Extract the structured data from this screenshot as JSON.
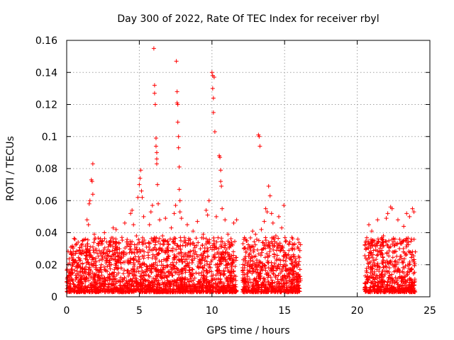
{
  "chart_data": {
    "type": "scatter",
    "title": "Day 300 of 2022, Rate Of TEC Index for receiver rbyl",
    "xlabel": "GPS time / hours",
    "ylabel": "ROTI / TECUs",
    "xlim": [
      0,
      25
    ],
    "ylim": [
      0,
      0.16
    ],
    "xticks": [
      0,
      5,
      10,
      15,
      20,
      25
    ],
    "xtick_labels": [
      "0",
      "5",
      "10",
      "15",
      "20",
      "25"
    ],
    "yticks": [
      0,
      0.02,
      0.04,
      0.06,
      0.08,
      0.1,
      0.12,
      0.14,
      0.16
    ],
    "ytick_labels": [
      "0",
      "0.02",
      "0.04",
      "0.06",
      "0.08",
      "0.1",
      "0.12",
      "0.14",
      "0.16"
    ],
    "grid": true,
    "marker": "+",
    "color": "#ff0000",
    "data_gaps_hours": [
      [
        16.1,
        20.5
      ]
    ],
    "coverage_segments_hours": [
      [
        0.0,
        11.7
      ],
      [
        12.1,
        16.1
      ],
      [
        20.5,
        24.0
      ]
    ],
    "series": [
      {
        "name": "rbyl",
        "points": [
          [
            0.05,
            0.012
          ],
          [
            0.2,
            0.021
          ],
          [
            0.4,
            0.015
          ],
          [
            0.6,
            0.027
          ],
          [
            0.8,
            0.009
          ],
          [
            1.0,
            0.031
          ],
          [
            1.1,
            0.018
          ],
          [
            1.3,
            0.036
          ],
          [
            1.4,
            0.048
          ],
          [
            1.5,
            0.045
          ],
          [
            1.55,
            0.058
          ],
          [
            1.6,
            0.06
          ],
          [
            1.7,
            0.073
          ],
          [
            1.75,
            0.072
          ],
          [
            1.8,
            0.083
          ],
          [
            1.8,
            0.064
          ],
          [
            1.9,
            0.039
          ],
          [
            2.0,
            0.024
          ],
          [
            2.2,
            0.033
          ],
          [
            2.4,
            0.028
          ],
          [
            2.6,
            0.04
          ],
          [
            2.8,
            0.019
          ],
          [
            3.0,
            0.032
          ],
          [
            3.2,
            0.043
          ],
          [
            3.4,
            0.042
          ],
          [
            3.6,
            0.026
          ],
          [
            3.8,
            0.037
          ],
          [
            4.0,
            0.046
          ],
          [
            4.2,
            0.033
          ],
          [
            4.4,
            0.052
          ],
          [
            4.5,
            0.054
          ],
          [
            4.6,
            0.045
          ],
          [
            4.8,
            0.038
          ],
          [
            4.9,
            0.062
          ],
          [
            5.0,
            0.07
          ],
          [
            5.05,
            0.074
          ],
          [
            5.1,
            0.079
          ],
          [
            5.15,
            0.066
          ],
          [
            5.2,
            0.062
          ],
          [
            5.3,
            0.05
          ],
          [
            5.5,
            0.031
          ],
          [
            5.7,
            0.045
          ],
          [
            5.8,
            0.053
          ],
          [
            5.9,
            0.057
          ],
          [
            6.0,
            0.155
          ],
          [
            6.05,
            0.132
          ],
          [
            6.05,
            0.127
          ],
          [
            6.1,
            0.12
          ],
          [
            6.15,
            0.099
          ],
          [
            6.15,
            0.094
          ],
          [
            6.2,
            0.09
          ],
          [
            6.2,
            0.086
          ],
          [
            6.2,
            0.083
          ],
          [
            6.25,
            0.07
          ],
          [
            6.3,
            0.058
          ],
          [
            6.4,
            0.048
          ],
          [
            6.6,
            0.038
          ],
          [
            6.8,
            0.049
          ],
          [
            7.0,
            0.033
          ],
          [
            7.2,
            0.043
          ],
          [
            7.4,
            0.052
          ],
          [
            7.5,
            0.057
          ],
          [
            7.55,
            0.147
          ],
          [
            7.6,
            0.128
          ],
          [
            7.6,
            0.121
          ],
          [
            7.65,
            0.12
          ],
          [
            7.65,
            0.109
          ],
          [
            7.7,
            0.1
          ],
          [
            7.7,
            0.093
          ],
          [
            7.75,
            0.081
          ],
          [
            7.75,
            0.067
          ],
          [
            7.8,
            0.06
          ],
          [
            7.8,
            0.053
          ],
          [
            7.9,
            0.049
          ],
          [
            8.1,
            0.037
          ],
          [
            8.3,
            0.045
          ],
          [
            8.5,
            0.028
          ],
          [
            8.7,
            0.041
          ],
          [
            9.0,
            0.047
          ],
          [
            9.2,
            0.03
          ],
          [
            9.4,
            0.039
          ],
          [
            9.6,
            0.054
          ],
          [
            9.7,
            0.051
          ],
          [
            9.8,
            0.06
          ],
          [
            10.0,
            0.14
          ],
          [
            10.05,
            0.138
          ],
          [
            10.05,
            0.13
          ],
          [
            10.1,
            0.124
          ],
          [
            10.1,
            0.115
          ],
          [
            10.15,
            0.137
          ],
          [
            10.2,
            0.103
          ],
          [
            10.3,
            0.05
          ],
          [
            10.5,
            0.088
          ],
          [
            10.55,
            0.087
          ],
          [
            10.6,
            0.079
          ],
          [
            10.6,
            0.072
          ],
          [
            10.65,
            0.069
          ],
          [
            10.7,
            0.055
          ],
          [
            10.9,
            0.048
          ],
          [
            11.1,
            0.039
          ],
          [
            11.3,
            0.032
          ],
          [
            11.5,
            0.046
          ],
          [
            11.7,
            0.048
          ],
          [
            12.2,
            0.03
          ],
          [
            12.4,
            0.035
          ],
          [
            12.6,
            0.027
          ],
          [
            12.8,
            0.041
          ],
          [
            13.0,
            0.039
          ],
          [
            13.2,
            0.101
          ],
          [
            13.25,
            0.1
          ],
          [
            13.3,
            0.094
          ],
          [
            13.4,
            0.042
          ],
          [
            13.6,
            0.047
          ],
          [
            13.7,
            0.055
          ],
          [
            13.8,
            0.053
          ],
          [
            13.9,
            0.069
          ],
          [
            14.0,
            0.063
          ],
          [
            14.1,
            0.052
          ],
          [
            14.2,
            0.046
          ],
          [
            14.4,
            0.038
          ],
          [
            14.6,
            0.05
          ],
          [
            14.8,
            0.043
          ],
          [
            14.95,
            0.057
          ],
          [
            15.1,
            0.035
          ],
          [
            15.3,
            0.029
          ],
          [
            15.5,
            0.037
          ],
          [
            15.7,
            0.033
          ],
          [
            15.9,
            0.031
          ],
          [
            16.0,
            0.022
          ],
          [
            20.6,
            0.024
          ],
          [
            20.8,
            0.045
          ],
          [
            21.0,
            0.041
          ],
          [
            21.2,
            0.035
          ],
          [
            21.4,
            0.048
          ],
          [
            21.6,
            0.032
          ],
          [
            21.8,
            0.038
          ],
          [
            22.0,
            0.049
          ],
          [
            22.1,
            0.052
          ],
          [
            22.3,
            0.056
          ],
          [
            22.4,
            0.055
          ],
          [
            22.6,
            0.036
          ],
          [
            22.8,
            0.048
          ],
          [
            23.0,
            0.034
          ],
          [
            23.2,
            0.044
          ],
          [
            23.4,
            0.052
          ],
          [
            23.6,
            0.05
          ],
          [
            23.8,
            0.055
          ],
          [
            23.9,
            0.053
          ],
          [
            24.0,
            0.028
          ]
        ]
      }
    ]
  }
}
